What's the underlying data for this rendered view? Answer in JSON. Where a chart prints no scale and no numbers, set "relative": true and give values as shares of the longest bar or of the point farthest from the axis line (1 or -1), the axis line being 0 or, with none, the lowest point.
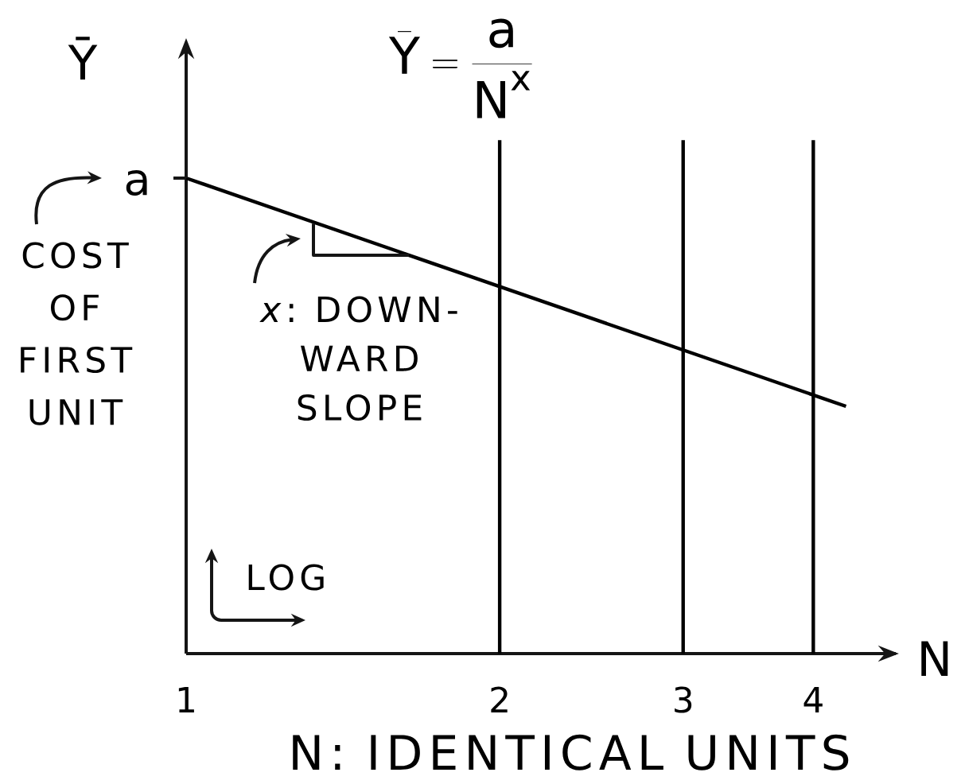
{
  "chart_data": {
    "type": "line",
    "title": "\\bar{\\mathrm{Y}} = \\frac{\\mathrm{a}}{\\mathrm{N}^{\\mathrm{x}}}",
    "xlabel": "N",
    "ylabel": "Ȳ",
    "x": [
      1,
      4.3
    ],
    "values": [
      1,
      0.52
    ],
    "color": "#000000",
    "relative": true,
    "log": "x",
    "xlim": [
      1,
      4.8
    ],
    "xticks": [
      1,
      2,
      3,
      4
    ],
    "ref_lines": [
      {
        "axis": "x",
        "value": 2,
        "color": "#000000"
      },
      {
        "axis": "x",
        "value": 3,
        "color": "#000000"
      },
      {
        "axis": "x",
        "value": 4,
        "color": "#000000"
      }
    ],
    "annotations": [
      "a",
      "COST OF FIRST UNIT",
      "*x*: DOWN-WARD SLOPE",
      "LOG",
      "N: IDENTICAL UNITS"
    ]
  }
}
